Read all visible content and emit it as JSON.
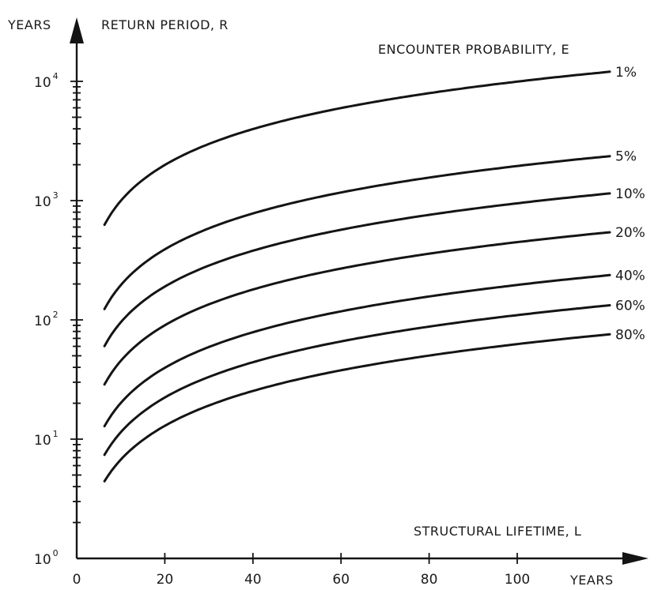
{
  "chart_data": {
    "type": "line",
    "y_axis_unit": "YEARS",
    "y_axis_title": "RETURN PERIOD, R",
    "x_axis_title": "STRUCTURAL LIFETIME, L",
    "x_axis_unit": "YEARS",
    "legend_title": "ENCOUNTER PROBABILITY, E",
    "y_scale": "log",
    "ylim": [
      1,
      40000
    ],
    "xlim": [
      0,
      120
    ],
    "x_ticks": [
      0,
      20,
      40,
      60,
      80,
      100
    ],
    "y_ticks": [
      {
        "base": "10",
        "exp": "0"
      },
      {
        "base": "10",
        "exp": "1"
      },
      {
        "base": "10",
        "exp": "2"
      },
      {
        "base": "10",
        "exp": "3"
      },
      {
        "base": "10",
        "exp": "4"
      }
    ],
    "grid": false,
    "legend_placement": "right",
    "series": [
      {
        "name": "1%",
        "E": 0.01
      },
      {
        "name": "5%",
        "E": 0.05
      },
      {
        "name": "10%",
        "E": 0.1
      },
      {
        "name": "20%",
        "E": 0.2
      },
      {
        "name": "40%",
        "E": 0.4
      },
      {
        "name": "60%",
        "E": 0.6
      },
      {
        "name": "80%",
        "E": 0.8
      }
    ]
  }
}
